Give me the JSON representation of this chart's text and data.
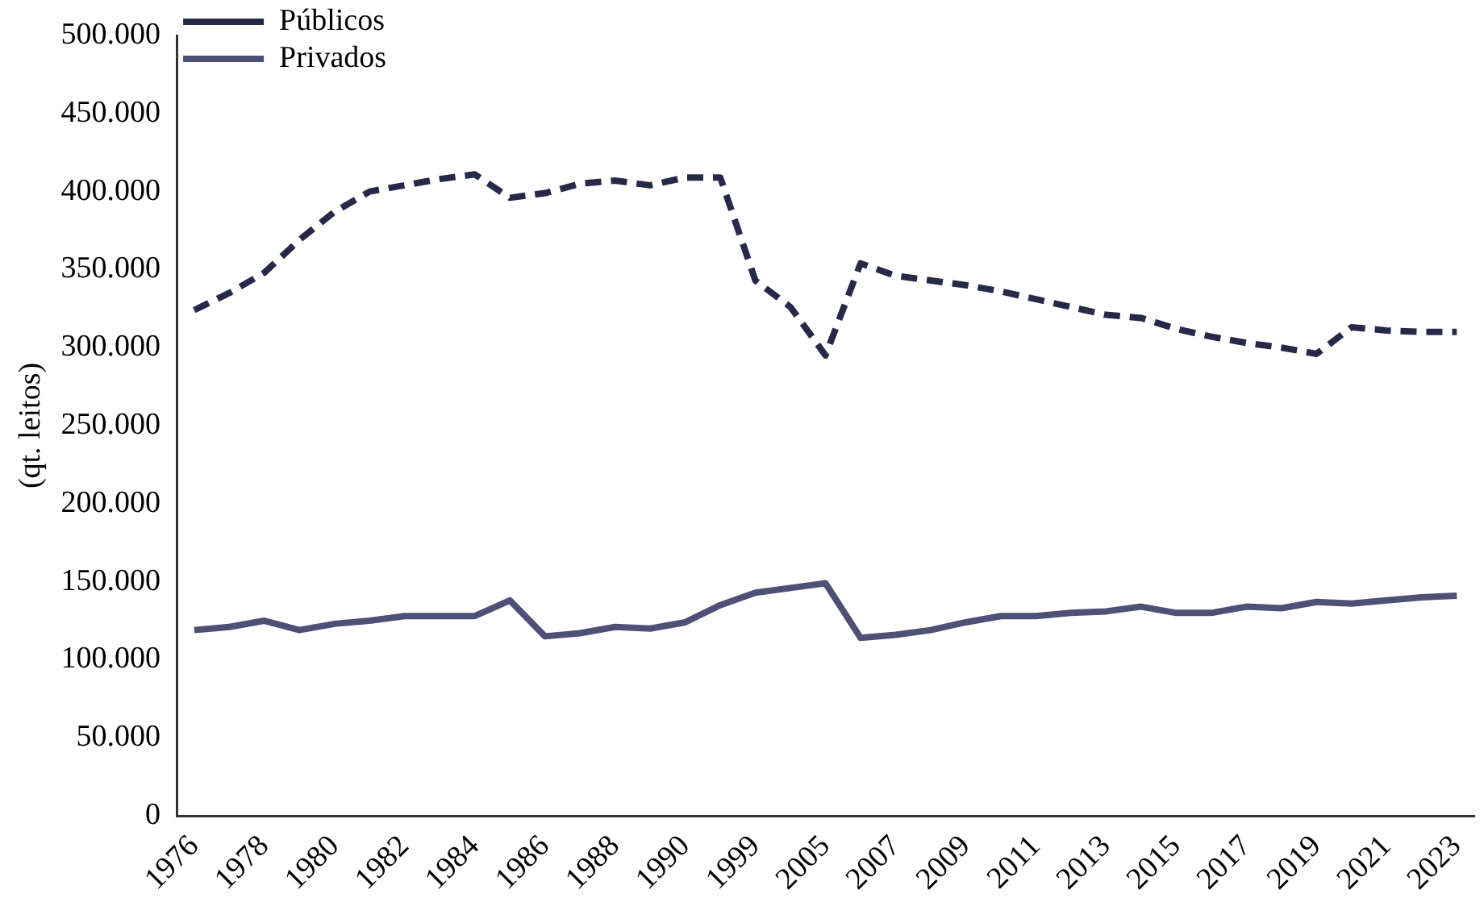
{
  "chart_data": {
    "type": "line",
    "ylabel": "(qt. leitos)",
    "categories": [
      "1976",
      null,
      "1978",
      null,
      "1980",
      null,
      "1982",
      null,
      "1984",
      null,
      "1986",
      null,
      "1988",
      null,
      "1990",
      null,
      "1999",
      null,
      "2005",
      null,
      "2007",
      null,
      "2009",
      null,
      "2011",
      null,
      "2013",
      null,
      "2015",
      null,
      "2017",
      null,
      "2019",
      null,
      "2021",
      null,
      "2023"
    ],
    "series": [
      {
        "name": "Públicos",
        "color": "#262a48",
        "line_style": "dashed",
        "values": [
          324000,
          335000,
          348000,
          369000,
          387000,
          400000,
          404000,
          408000,
          411000,
          396000,
          399000,
          405000,
          407000,
          404000,
          409000,
          409000,
          343000,
          326000,
          295000,
          354000,
          346000,
          343000,
          340000,
          336000,
          331000,
          326000,
          321000,
          319000,
          312000,
          307000,
          303000,
          300000,
          296000,
          313000,
          311000,
          310000,
          310000
        ]
      },
      {
        "name": "Privados",
        "color": "#4f5075",
        "line_style": "solid",
        "values": [
          119000,
          121000,
          125000,
          119000,
          123000,
          125000,
          128000,
          128000,
          128000,
          138000,
          115000,
          117000,
          121000,
          120000,
          124000,
          135000,
          143000,
          146000,
          149000,
          114000,
          116000,
          119000,
          124000,
          128000,
          128000,
          130000,
          131000,
          134000,
          130000,
          130000,
          134000,
          133000,
          137000,
          136000,
          138000,
          140000,
          141000
        ]
      }
    ],
    "ylim": [
      0,
      500000
    ],
    "yticks": [
      {
        "value": 0,
        "label": "0"
      },
      {
        "value": 50000,
        "label": "50.000"
      },
      {
        "value": 100000,
        "label": "100.000"
      },
      {
        "value": 150000,
        "label": "150.000"
      },
      {
        "value": 200000,
        "label": "200.000"
      },
      {
        "value": 250000,
        "label": "250.000"
      },
      {
        "value": 300000,
        "label": "300.000"
      },
      {
        "value": 350000,
        "label": "350.000"
      },
      {
        "value": 400000,
        "label": "400.000"
      },
      {
        "value": 450000,
        "label": "450.000"
      },
      {
        "value": 500000,
        "label": "500.000"
      }
    ],
    "grid": false,
    "legend": "top left",
    "marker": "none"
  }
}
